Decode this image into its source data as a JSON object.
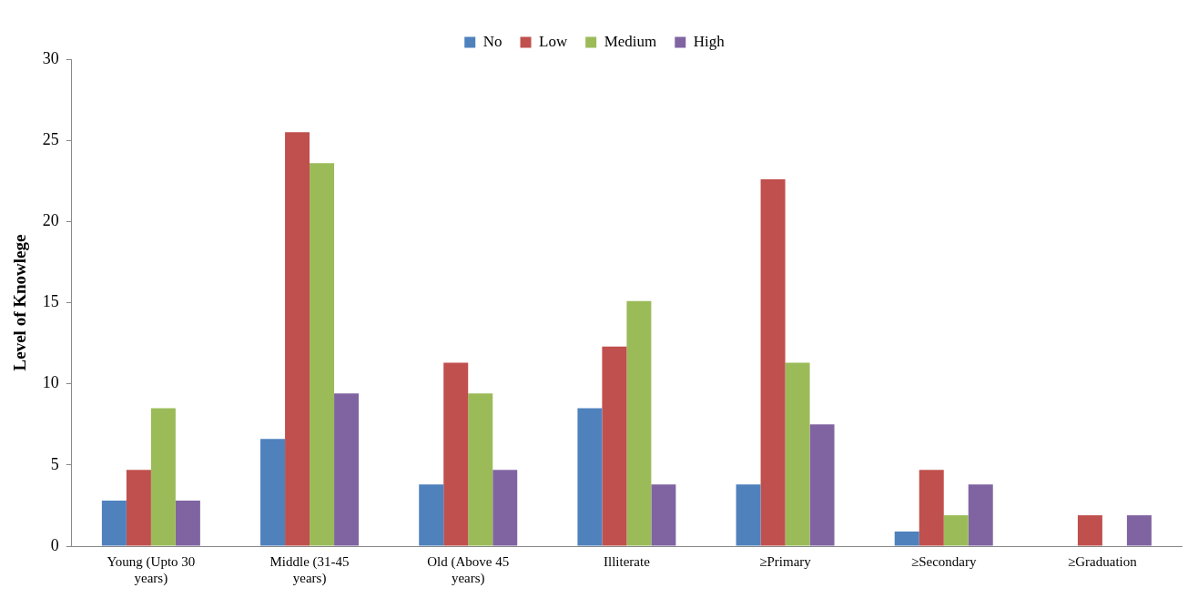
{
  "chart_data": {
    "type": "bar",
    "ylabel": "Level of Knowlege",
    "categories": [
      "Young (Upto 30 years)",
      "Middle (31-45 years)",
      "Old (Above 45 years)",
      "Illiterate",
      "≥Primary",
      "≥Secondary",
      "≥Graduation"
    ],
    "series": [
      {
        "name": "No",
        "color": "#4f81bd",
        "values": [
          2.8,
          6.6,
          3.8,
          8.5,
          3.8,
          0.9,
          0
        ]
      },
      {
        "name": "Low",
        "color": "#c0504d",
        "values": [
          4.7,
          25.5,
          11.3,
          12.3,
          22.6,
          4.7,
          1.9
        ]
      },
      {
        "name": "Medium",
        "color": "#9bbb59",
        "values": [
          8.5,
          23.6,
          9.4,
          15.1,
          11.3,
          1.9,
          0
        ]
      },
      {
        "name": "High",
        "color": "#8064a2",
        "values": [
          2.8,
          9.4,
          4.7,
          3.8,
          7.5,
          3.8,
          1.9
        ]
      }
    ],
    "ylim": [
      0,
      30
    ],
    "yticks": [
      0,
      5,
      10,
      15,
      20,
      25,
      30
    ],
    "grid": false,
    "legend": "top"
  }
}
